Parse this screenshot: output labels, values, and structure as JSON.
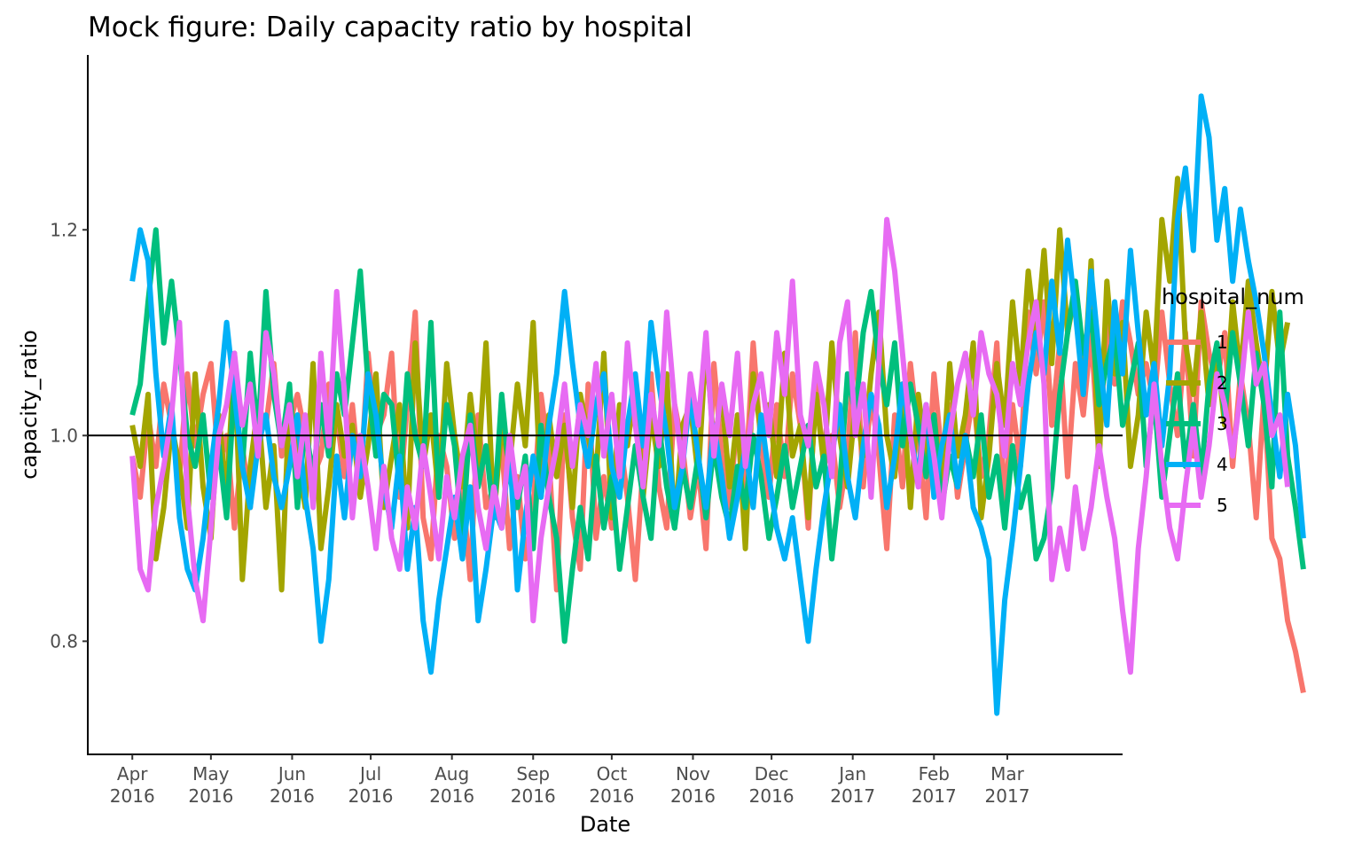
{
  "chart_data": {
    "type": "line",
    "title": "Mock figure: Daily capacity ratio by hospital",
    "xlabel": "Date",
    "ylabel": "capacity_ratio",
    "x_range": [
      "2016-03-15",
      "2017-04-14"
    ],
    "ylim": [
      0.69,
      1.37
    ],
    "y_ticks": [
      0.8,
      1.0,
      1.2
    ],
    "y_tick_labels": [
      "0.8",
      "1.0",
      "1.2"
    ],
    "x_ticks": [
      {
        "date": "2016-04-01",
        "line1": "Apr",
        "line2": "2016"
      },
      {
        "date": "2016-05-01",
        "line1": "May",
        "line2": "2016"
      },
      {
        "date": "2016-06-01",
        "line1": "Jun",
        "line2": "2016"
      },
      {
        "date": "2016-07-01",
        "line1": "Jul",
        "line2": "2016"
      },
      {
        "date": "2016-08-01",
        "line1": "Aug",
        "line2": "2016"
      },
      {
        "date": "2016-09-01",
        "line1": "Sep",
        "line2": "2016"
      },
      {
        "date": "2016-10-01",
        "line1": "Oct",
        "line2": "2016"
      },
      {
        "date": "2016-11-01",
        "line1": "Nov",
        "line2": "2016"
      },
      {
        "date": "2016-12-01",
        "line1": "Dec",
        "line2": "2016"
      },
      {
        "date": "2017-01-01",
        "line1": "Jan",
        "line2": "2017"
      },
      {
        "date": "2017-02-01",
        "line1": "Feb",
        "line2": "2017"
      },
      {
        "date": "2017-03-01",
        "line1": "Mar",
        "line2": "2017"
      }
    ],
    "reference_line": 1.0,
    "grid": false,
    "legend": {
      "title": "hospital_num",
      "position": "right"
    },
    "date_step_days": 3,
    "series": [
      {
        "name": "1",
        "color": "#F8766D",
        "start": "2016-04-01",
        "values": [
          0.98,
          0.94,
          1.02,
          0.97,
          1.05,
          1.01,
          0.96,
          1.06,
          0.99,
          1.04,
          1.07,
          0.97,
          1.0,
          0.91,
          0.99,
          0.93,
          1.03,
          1.01,
          1.07,
          0.98,
          1.01,
          1.04,
          1.0,
          0.96,
          0.98,
          1.05,
          1.02,
          0.96,
          1.03,
          0.95,
          1.08,
          1.0,
          1.02,
          1.08,
          0.94,
          1.03,
          1.12,
          0.92,
          0.88,
          1.0,
          0.97,
          0.9,
          0.95,
          0.86,
          1.02,
          0.93,
          0.95,
          0.99,
          0.89,
          0.96,
          0.88,
          0.93,
          1.04,
          0.98,
          0.85,
          1.02,
          0.92,
          0.87,
          1.05,
          0.9,
          0.96,
          0.91,
          1.0,
          0.94,
          0.86,
          0.97,
          1.06,
          0.95,
          0.91,
          1.03,
          0.99,
          0.92,
          0.97,
          0.89,
          1.07,
          0.98,
          0.93,
          1.02,
          0.95,
          1.09,
          0.99,
          0.94,
          1.03,
          0.96,
          1.06,
          1.01,
          0.91,
          1.05,
          0.97,
          1.0,
          0.93,
          0.98,
          1.1,
          0.95,
          1.04,
          0.98,
          0.89,
          1.02,
          0.95,
          1.07,
          1.0,
          0.92,
          1.06,
          0.98,
          1.03,
          0.94,
          0.99,
          1.04,
          0.96,
          1.0,
          1.09,
          0.93,
          1.03,
          0.97,
          1.12,
          1.06,
          1.13,
          1.01,
          1.09,
          0.96,
          1.07,
          1.02,
          1.1,
          0.98,
          1.11,
          1.05,
          1.13,
          1.09,
          1.04,
          1.07,
          1.03,
          1.12,
          1.05,
          1.0,
          1.1,
          0.98,
          1.13,
          1.08,
          1.05,
          1.1,
          0.97,
          1.06,
          1.01,
          0.92,
          1.04,
          0.9,
          0.88,
          0.82,
          0.79,
          0.75
        ]
      },
      {
        "name": "2",
        "color": "#A3A500",
        "start": "2016-04-01",
        "values": [
          1.01,
          0.97,
          1.04,
          0.88,
          0.93,
          1.01,
          0.97,
          0.91,
          1.06,
          0.95,
          0.9,
          1.02,
          0.94,
          1.08,
          0.86,
          0.97,
          1.03,
          0.93,
          0.99,
          0.85,
          1.04,
          0.98,
          0.93,
          1.07,
          0.89,
          0.95,
          1.03,
          0.98,
          1.01,
          0.94,
          0.99,
          1.06,
          0.93,
          0.98,
          1.03,
          0.91,
          1.09,
          0.97,
          1.02,
          0.94,
          1.07,
          1.0,
          0.95,
          1.04,
          0.97,
          1.09,
          0.92,
          1.01,
          0.97,
          1.05,
          0.99,
          1.11,
          0.94,
          1.02,
          0.96,
          1.01,
          0.93,
          1.04,
          1.0,
          0.96,
          1.08,
          0.92,
          1.03,
          0.99,
          1.05,
          0.94,
          1.02,
          0.97,
          1.06,
          0.91,
          1.01,
          1.03,
          0.96,
          1.09,
          0.99,
          1.04,
          0.95,
          1.02,
          0.89,
          1.06,
          1.0,
          1.03,
          0.96,
          1.08,
          0.98,
          1.01,
          0.92,
          1.04,
          0.97,
          1.09,
          1.0,
          0.95,
          1.03,
          0.98,
          1.06,
          1.12,
          1.0,
          0.96,
          1.05,
          0.93,
          1.04,
          0.98,
          1.02,
          0.95,
          1.07,
          0.98,
          1.02,
          1.09,
          0.92,
          0.98,
          1.07,
          1.01,
          1.13,
          1.05,
          1.16,
          1.09,
          1.18,
          1.07,
          1.2,
          1.1,
          1.14,
          1.04,
          1.17,
          0.97,
          1.15,
          1.06,
          1.11,
          0.97,
          1.02,
          1.12,
          1.06,
          1.21,
          1.15,
          1.25,
          1.09,
          1.04,
          1.12,
          1.03,
          1.08,
          1.01,
          1.13,
          1.06,
          1.15,
          1.09,
          1.04,
          1.14,
          1.07,
          1.11
        ]
      },
      {
        "name": "3",
        "color": "#00BF7D",
        "start": "2016-04-01",
        "values": [
          1.02,
          1.05,
          1.13,
          1.2,
          1.09,
          1.15,
          1.08,
          1.0,
          0.97,
          1.02,
          0.94,
          0.99,
          0.92,
          1.05,
          0.97,
          1.08,
          1.0,
          1.14,
          1.04,
          0.99,
          1.05,
          0.93,
          1.01,
          0.96,
          1.03,
          0.98,
          1.06,
          1.02,
          1.09,
          1.16,
          1.05,
          0.98,
          1.04,
          1.03,
          0.95,
          1.06,
          1.0,
          0.97,
          1.11,
          0.94,
          1.03,
          0.99,
          0.9,
          1.02,
          0.95,
          0.99,
          0.92,
          1.04,
          0.96,
          0.93,
          0.98,
          0.89,
          1.01,
          0.94,
          0.9,
          0.8,
          0.87,
          0.93,
          0.88,
          0.98,
          0.91,
          0.96,
          0.87,
          0.93,
          0.99,
          0.94,
          0.9,
          1.01,
          0.95,
          0.91,
          0.97,
          0.93,
          0.98,
          0.92,
          0.99,
          0.94,
          0.91,
          0.97,
          0.93,
          1.0,
          0.96,
          0.9,
          0.94,
          0.99,
          0.93,
          0.97,
          1.01,
          0.95,
          0.98,
          0.88,
          0.95,
          1.06,
          1.02,
          1.1,
          1.14,
          1.07,
          1.03,
          1.09,
          0.99,
          1.05,
          1.01,
          0.96,
          1.02,
          0.93,
          0.98,
          0.95,
          1.0,
          0.96,
          1.02,
          0.94,
          0.98,
          0.91,
          0.99,
          0.93,
          0.96,
          0.88,
          0.9,
          0.95,
          1.04,
          1.1,
          1.15,
          1.08,
          1.12,
          1.03,
          1.07,
          1.1,
          1.01,
          1.05,
          1.09,
          0.97,
          1.04,
          0.94,
          1.0,
          1.06,
          0.97,
          1.03,
          0.96,
          1.05,
          1.09,
          1.02,
          1.1,
          1.05,
          0.99,
          1.08,
          1.03,
          0.95,
          1.12,
          0.98,
          0.93,
          0.87
        ]
      },
      {
        "name": "4",
        "color": "#00B0F6",
        "start": "2016-04-01",
        "values": [
          1.15,
          1.2,
          1.17,
          1.06,
          0.98,
          1.03,
          0.92,
          0.87,
          0.85,
          0.9,
          0.97,
          1.03,
          1.11,
          1.04,
          0.97,
          0.93,
          0.99,
          1.02,
          0.96,
          0.93,
          0.97,
          1.02,
          0.94,
          0.89,
          0.8,
          0.86,
          0.98,
          0.92,
          1.0,
          0.96,
          1.06,
          1.02,
          0.95,
          0.91,
          0.98,
          0.87,
          0.93,
          0.82,
          0.77,
          0.84,
          0.89,
          0.94,
          0.88,
          0.95,
          0.82,
          0.87,
          0.93,
          0.91,
          0.99,
          0.85,
          0.92,
          0.98,
          0.94,
          1.01,
          1.06,
          1.14,
          1.07,
          1.01,
          0.97,
          1.03,
          1.06,
          0.97,
          0.94,
          1.01,
          1.06,
          0.99,
          1.11,
          1.05,
          1.0,
          0.93,
          0.97,
          1.04,
          0.98,
          0.93,
          1.01,
          0.96,
          0.9,
          0.94,
          0.99,
          0.93,
          1.02,
          0.96,
          0.91,
          0.88,
          0.92,
          0.86,
          0.8,
          0.87,
          0.93,
          0.98,
          1.03,
          0.96,
          0.92,
          0.99,
          1.04,
          1.01,
          0.93,
          0.98,
          1.05,
          1.0,
          0.96,
          1.03,
          0.94,
          0.99,
          1.02,
          0.95,
          1.0,
          0.93,
          0.91,
          0.88,
          0.73,
          0.84,
          0.9,
          0.97,
          1.05,
          1.1,
          1.06,
          1.15,
          1.08,
          1.19,
          1.12,
          1.04,
          1.16,
          1.08,
          1.01,
          1.13,
          1.06,
          1.18,
          1.1,
          1.02,
          1.07,
          0.99,
          1.06,
          1.21,
          1.26,
          1.18,
          1.33,
          1.29,
          1.19,
          1.24,
          1.15,
          1.22,
          1.17,
          1.13,
          1.08,
          1.02,
          0.96,
          1.04,
          0.99,
          0.9
        ]
      },
      {
        "name": "5",
        "color": "#E76BF3",
        "start": "2016-04-01",
        "values": [
          0.98,
          0.87,
          0.85,
          0.93,
          0.97,
          1.02,
          1.11,
          0.94,
          0.86,
          0.82,
          0.91,
          1.0,
          1.03,
          1.08,
          1.01,
          1.05,
          0.98,
          1.1,
          1.06,
          0.99,
          1.03,
          0.96,
          1.02,
          0.93,
          1.08,
          0.99,
          1.14,
          1.04,
          0.92,
          1.0,
          0.95,
          0.89,
          0.97,
          0.9,
          0.87,
          0.95,
          0.91,
          0.99,
          0.94,
          0.88,
          0.96,
          0.92,
          0.98,
          1.01,
          0.93,
          0.89,
          0.95,
          0.91,
          1.0,
          0.94,
          0.97,
          0.82,
          0.9,
          0.95,
          0.99,
          1.05,
          0.97,
          1.03,
          1.0,
          1.07,
          0.98,
          1.04,
          0.96,
          1.09,
          1.01,
          0.95,
          1.04,
          0.99,
          1.12,
          1.03,
          0.97,
          1.06,
          1.01,
          1.1,
          0.98,
          1.05,
          1.0,
          1.08,
          0.97,
          1.03,
          1.06,
          1.0,
          1.1,
          1.04,
          1.15,
          1.02,
          0.99,
          1.07,
          1.03,
          0.96,
          1.09,
          1.13,
          1.0,
          1.05,
          0.94,
          1.07,
          1.21,
          1.16,
          1.08,
          1.0,
          0.95,
          1.03,
          0.98,
          0.92,
          1.0,
          1.05,
          1.08,
          1.02,
          1.1,
          1.06,
          1.04,
          0.98,
          1.07,
          1.03,
          1.09,
          1.13,
          1.05,
          0.86,
          0.91,
          0.87,
          0.95,
          0.89,
          0.93,
          0.99,
          0.94,
          0.9,
          0.83,
          0.77,
          0.89,
          0.96,
          1.05,
          0.97,
          0.91,
          0.88,
          0.95,
          1.01,
          0.94,
          0.99,
          1.06,
          1.03,
          0.98,
          1.04,
          1.12,
          1.05,
          1.07,
          1.0,
          1.02,
          0.95
        ]
      }
    ]
  }
}
